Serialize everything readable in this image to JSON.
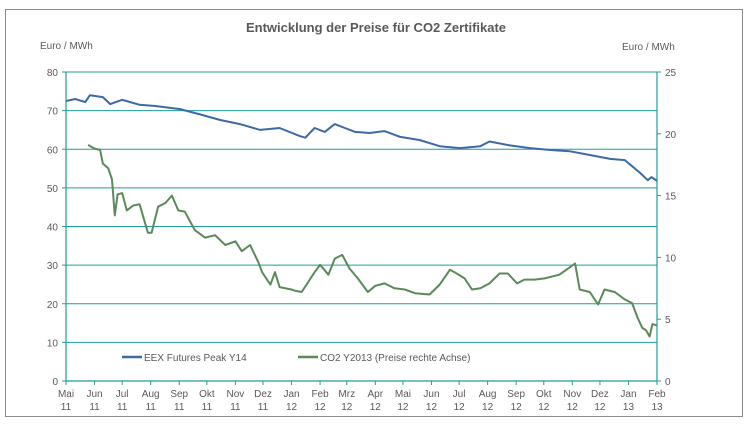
{
  "chart_data": {
    "type": "line",
    "title": "Entwicklung der Preise für CO2 Zertifikate",
    "ylabel_left": "Euro / MWh",
    "ylabel_right": "Euro / MWh",
    "ylim_left": [
      0,
      80
    ],
    "ylim_right": [
      0,
      25
    ],
    "yticks_left": [
      "0",
      "10",
      "20",
      "30",
      "40",
      "50",
      "60",
      "70",
      "80"
    ],
    "yticks_right": [
      "0",
      "5",
      "10",
      "15",
      "20",
      "25"
    ],
    "xlim": [
      "2011-05-01",
      "2013-02-01"
    ],
    "xticks": [
      {
        "date": "2011-05-01",
        "m": "Mai",
        "y": "11"
      },
      {
        "date": "2011-06-01",
        "m": "Jun",
        "y": "11"
      },
      {
        "date": "2011-07-01",
        "m": "Jul",
        "y": "11"
      },
      {
        "date": "2011-08-01",
        "m": "Aug",
        "y": "11"
      },
      {
        "date": "2011-09-01",
        "m": "Sep",
        "y": "11"
      },
      {
        "date": "2011-10-01",
        "m": "Okt",
        "y": "11"
      },
      {
        "date": "2011-11-01",
        "m": "Nov",
        "y": "11"
      },
      {
        "date": "2011-12-01",
        "m": "Dez",
        "y": "11"
      },
      {
        "date": "2012-01-01",
        "m": "Jan",
        "y": "12"
      },
      {
        "date": "2012-02-01",
        "m": "Feb",
        "y": "12"
      },
      {
        "date": "2012-03-01",
        "m": "Mrz",
        "y": "12"
      },
      {
        "date": "2012-04-01",
        "m": "Apr",
        "y": "12"
      },
      {
        "date": "2012-05-01",
        "m": "Mai",
        "y": "12"
      },
      {
        "date": "2012-06-01",
        "m": "Jun",
        "y": "12"
      },
      {
        "date": "2012-07-01",
        "m": "Jul",
        "y": "12"
      },
      {
        "date": "2012-08-01",
        "m": "Aug",
        "y": "12"
      },
      {
        "date": "2012-09-01",
        "m": "Sep",
        "y": "12"
      },
      {
        "date": "2012-10-01",
        "m": "Okt",
        "y": "12"
      },
      {
        "date": "2012-11-01",
        "m": "Nov",
        "y": "12"
      },
      {
        "date": "2012-12-01",
        "m": "Dez",
        "y": "12"
      },
      {
        "date": "2013-01-01",
        "m": "Jan",
        "y": "13"
      },
      {
        "date": "2013-02-01",
        "m": "Feb",
        "y": "13"
      }
    ],
    "grid": true,
    "legend_placement": "bottom-left inside",
    "axis_color": "#1f9e9e",
    "series": [
      {
        "name": "EEX Futures Peak Y14",
        "axis": "left",
        "color": "#3d6aa5",
        "points": [
          [
            "2011-05-01",
            72.5
          ],
          [
            "2011-05-11",
            73
          ],
          [
            "2011-05-22",
            72.2
          ],
          [
            "2011-05-27",
            74
          ],
          [
            "2011-06-10",
            73.5
          ],
          [
            "2011-06-18",
            71.7
          ],
          [
            "2011-07-01",
            72.8
          ],
          [
            "2011-07-20",
            71.5
          ],
          [
            "2011-08-06",
            71.2
          ],
          [
            "2011-09-02",
            70.4
          ],
          [
            "2011-09-24",
            69
          ],
          [
            "2011-10-15",
            67.6
          ],
          [
            "2011-11-06",
            66.5
          ],
          [
            "2011-11-28",
            65
          ],
          [
            "2011-12-19",
            65.5
          ],
          [
            "2012-01-10",
            63.4
          ],
          [
            "2012-01-16",
            63
          ],
          [
            "2012-01-26",
            65.5
          ],
          [
            "2012-02-06",
            64.5
          ],
          [
            "2012-02-17",
            66.5
          ],
          [
            "2012-02-28",
            65.5
          ],
          [
            "2012-03-10",
            64.5
          ],
          [
            "2012-03-26",
            64.2
          ],
          [
            "2012-04-11",
            64.7
          ],
          [
            "2012-04-28",
            63.2
          ],
          [
            "2012-05-19",
            62.4
          ],
          [
            "2012-06-10",
            60.8
          ],
          [
            "2012-07-02",
            60.3
          ],
          [
            "2012-07-24",
            60.8
          ],
          [
            "2012-08-03",
            62
          ],
          [
            "2012-08-25",
            61
          ],
          [
            "2012-09-16",
            60.3
          ],
          [
            "2012-10-08",
            59.8
          ],
          [
            "2012-10-29",
            59.5
          ],
          [
            "2012-11-20",
            58.5
          ],
          [
            "2012-12-12",
            57.5
          ],
          [
            "2012-12-28",
            57.2
          ],
          [
            "2013-01-13",
            54
          ],
          [
            "2013-01-22",
            52
          ],
          [
            "2013-01-26",
            52.8
          ],
          [
            "2013-02-01",
            51.8
          ]
        ]
      },
      {
        "name": "CO2 Y2013 (Preise rechte Achse)",
        "axis": "right",
        "color": "#5a8a5a",
        "points": [
          [
            "2011-05-25",
            19.1
          ],
          [
            "2011-06-01",
            18.8
          ],
          [
            "2011-06-07",
            18.7
          ],
          [
            "2011-06-10",
            17.6
          ],
          [
            "2011-06-16",
            17.2
          ],
          [
            "2011-06-20",
            16.3
          ],
          [
            "2011-06-23",
            13.4
          ],
          [
            "2011-06-26",
            15.1
          ],
          [
            "2011-07-01",
            15.2
          ],
          [
            "2011-07-06",
            13.8
          ],
          [
            "2011-07-13",
            14.2
          ],
          [
            "2011-07-20",
            14.3
          ],
          [
            "2011-07-29",
            12
          ],
          [
            "2011-08-02",
            12
          ],
          [
            "2011-08-09",
            14.1
          ],
          [
            "2011-08-17",
            14.4
          ],
          [
            "2011-08-24",
            15
          ],
          [
            "2011-08-31",
            13.8
          ],
          [
            "2011-09-07",
            13.7
          ],
          [
            "2011-09-18",
            12.2
          ],
          [
            "2011-09-29",
            11.6
          ],
          [
            "2011-10-10",
            11.8
          ],
          [
            "2011-10-21",
            11
          ],
          [
            "2011-11-01",
            11.3
          ],
          [
            "2011-11-08",
            10.5
          ],
          [
            "2011-11-17",
            11
          ],
          [
            "2011-11-26",
            9.6
          ],
          [
            "2011-11-30",
            8.8
          ],
          [
            "2011-12-09",
            7.8
          ],
          [
            "2011-12-14",
            8.8
          ],
          [
            "2011-12-19",
            7.6
          ],
          [
            "2012-01-01",
            7.4
          ],
          [
            "2012-01-05",
            7.3
          ],
          [
            "2012-01-12",
            7.2
          ],
          [
            "2012-01-26",
            8.8
          ],
          [
            "2012-02-01",
            9.4
          ],
          [
            "2012-02-10",
            8.6
          ],
          [
            "2012-02-17",
            9.9
          ],
          [
            "2012-02-25",
            10.2
          ],
          [
            "2012-03-04",
            9.1
          ],
          [
            "2012-03-13",
            8.3
          ],
          [
            "2012-03-24",
            7.2
          ],
          [
            "2012-04-01",
            7.7
          ],
          [
            "2012-04-11",
            7.9
          ],
          [
            "2012-04-22",
            7.5
          ],
          [
            "2012-05-03",
            7.4
          ],
          [
            "2012-05-14",
            7.1
          ],
          [
            "2012-05-30",
            7
          ],
          [
            "2012-06-10",
            7.8
          ],
          [
            "2012-06-21",
            9
          ],
          [
            "2012-06-26",
            8.8
          ],
          [
            "2012-07-07",
            8.3
          ],
          [
            "2012-07-15",
            7.4
          ],
          [
            "2012-07-24",
            7.5
          ],
          [
            "2012-08-03",
            7.9
          ],
          [
            "2012-08-14",
            8.7
          ],
          [
            "2012-08-23",
            8.7
          ],
          [
            "2012-09-02",
            7.9
          ],
          [
            "2012-09-10",
            8.2
          ],
          [
            "2012-09-21",
            8.2
          ],
          [
            "2012-10-02",
            8.3
          ],
          [
            "2012-10-18",
            8.6
          ],
          [
            "2012-11-04",
            9.5
          ],
          [
            "2012-11-09",
            7.4
          ],
          [
            "2012-11-20",
            7.2
          ],
          [
            "2012-11-29",
            6.2
          ],
          [
            "2012-12-06",
            7.4
          ],
          [
            "2012-12-17",
            7.2
          ],
          [
            "2012-12-28",
            6.6
          ],
          [
            "2013-01-05",
            6.3
          ],
          [
            "2013-01-11",
            5.1
          ],
          [
            "2013-01-16",
            4.3
          ],
          [
            "2013-01-20",
            4.1
          ],
          [
            "2013-01-24",
            3.6
          ],
          [
            "2013-01-27",
            4.6
          ],
          [
            "2013-02-01",
            4.5
          ]
        ]
      }
    ]
  }
}
